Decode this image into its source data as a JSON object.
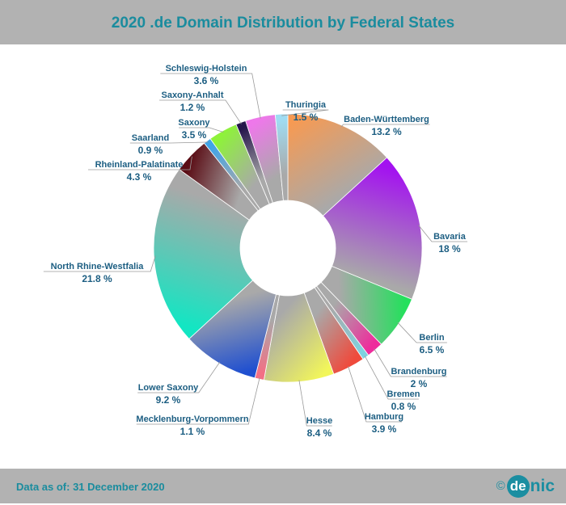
{
  "title": "2020 .de Domain Distribution by Federal States",
  "footer": {
    "note": "Data as of: 31 December 2020",
    "copyright": "©",
    "logo_circle": "de",
    "logo_rest": "nic"
  },
  "chart_data": {
    "type": "pie",
    "donut": true,
    "title": "2020 .de Domain Distribution by Federal States",
    "unit": "%",
    "slices": [
      {
        "name": "Baden-Württemberg",
        "value": 13.2,
        "label": "13.2 %",
        "color": "#f79a52"
      },
      {
        "name": "Bavaria",
        "value": 18,
        "label": "18 %",
        "color": "#a312f0"
      },
      {
        "name": "Berlin",
        "value": 6.5,
        "label": "6.5 %",
        "color": "#24e05c"
      },
      {
        "name": "Brandenburg",
        "value": 2,
        "label": "2 %",
        "color": "#ee2c9c"
      },
      {
        "name": "Bremen",
        "value": 0.8,
        "label": "0.8 %",
        "color": "#7fd2df"
      },
      {
        "name": "Hamburg",
        "value": 3.9,
        "label": "3.9 %",
        "color": "#ef4a3c"
      },
      {
        "name": "Hesse",
        "value": 8.4,
        "label": "8.4 %",
        "color": "#f2f65a"
      },
      {
        "name": "Mecklenburg-Vorpommern",
        "value": 1.1,
        "label": "1.1 %",
        "color": "#f27085"
      },
      {
        "name": "Lower Saxony",
        "value": 9.2,
        "label": "9.2 %",
        "color": "#1f4fd0"
      },
      {
        "name": "North Rhine-Westfalia",
        "value": 21.8,
        "label": "21.8 %",
        "color": "#12e6c3"
      },
      {
        "name": "Rheinland-Palatinate",
        "value": 4.3,
        "label": "4.3 %",
        "color": "#5a0c14"
      },
      {
        "name": "Saarland",
        "value": 0.9,
        "label": "0.9 %",
        "color": "#3ea4e8"
      },
      {
        "name": "Saxony",
        "value": 3.5,
        "label": "3.5 %",
        "color": "#8ef23a"
      },
      {
        "name": "Saxony-Anhalt",
        "value": 1.2,
        "label": "1.2 %",
        "color": "#26164c"
      },
      {
        "name": "Schleswig-Holstein",
        "value": 3.6,
        "label": "3.6 %",
        "color": "#ee78ea"
      },
      {
        "name": "Thuringia",
        "value": 1.5,
        "label": "1.5 %",
        "color": "#9fdcf2"
      }
    ]
  }
}
